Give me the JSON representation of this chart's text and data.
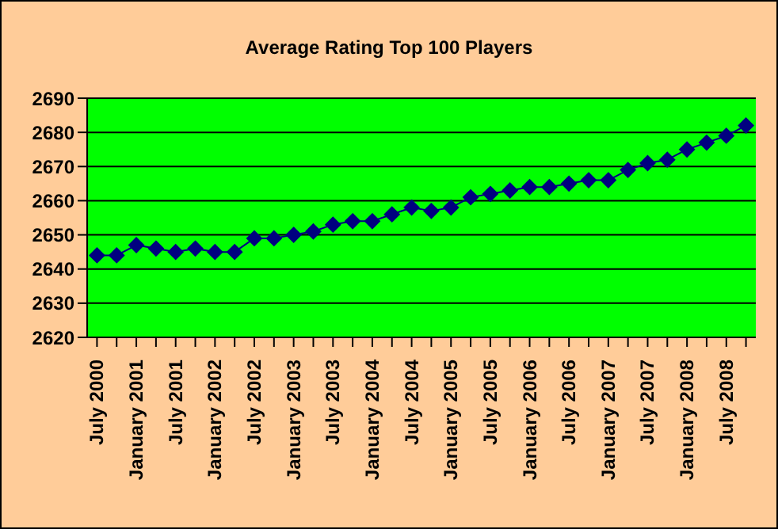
{
  "chart_data": {
    "type": "line",
    "title": "Average Rating Top 100 Players",
    "categories": [
      "July 2000",
      null,
      "January 2001",
      null,
      "July 2001",
      null,
      "January 2002",
      null,
      "July 2002",
      null,
      "January 2003",
      null,
      "July 2003",
      null,
      "January 2004",
      null,
      "July 2004",
      null,
      "January 2005",
      null,
      "July 2005",
      null,
      "January 2006",
      null,
      "July 2006",
      null,
      "January 2007",
      null,
      "July 2007",
      null,
      "January 2008",
      null,
      "July 2008",
      null
    ],
    "series": [
      {
        "color": "#000080",
        "values": [
          2644,
          2644,
          2647,
          2646,
          2645,
          2646,
          2645,
          2645,
          2649,
          2649,
          2650,
          2651,
          2653,
          2654,
          2654,
          2656,
          2658,
          2657,
          2658,
          2661,
          2662,
          2663,
          2664,
          2664,
          2665,
          2666,
          2666,
          2669,
          2671,
          2672,
          2675,
          2677,
          2679,
          2682
        ]
      }
    ],
    "ylim": [
      2620,
      2690
    ],
    "yticks": [
      2620,
      2630,
      2640,
      2650,
      2660,
      2670,
      2680,
      2690
    ],
    "grid": "y",
    "marker": "diamond",
    "line_style": "solid"
  }
}
